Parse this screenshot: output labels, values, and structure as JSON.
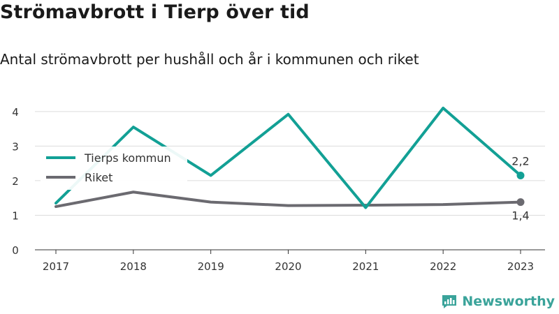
{
  "title": "Strömavbrott i Tierp över tid",
  "subtitle": "Antal strömavbrott per hushåll och år i kommunen och riket",
  "brand": {
    "name": "Newsworthy",
    "icon": "newsworthy-logo-icon",
    "color": "#3aa39a"
  },
  "chart_data": {
    "type": "line",
    "x": [
      "2017",
      "2018",
      "2019",
      "2020",
      "2021",
      "2022",
      "2023"
    ],
    "series": [
      {
        "name": "Tierps kommun",
        "color": "#12a095",
        "values": [
          1.35,
          3.55,
          2.15,
          3.92,
          1.22,
          4.1,
          2.15
        ],
        "end_label": "2,2"
      },
      {
        "name": "Riket",
        "color": "#6b6a70",
        "values": [
          1.25,
          1.67,
          1.38,
          1.28,
          1.29,
          1.31,
          1.38
        ],
        "end_label": "1,4"
      }
    ],
    "yticks": [
      0,
      1,
      2,
      3,
      4
    ],
    "ylim": [
      0,
      4.4
    ],
    "grid": true,
    "legend": "top-left"
  }
}
